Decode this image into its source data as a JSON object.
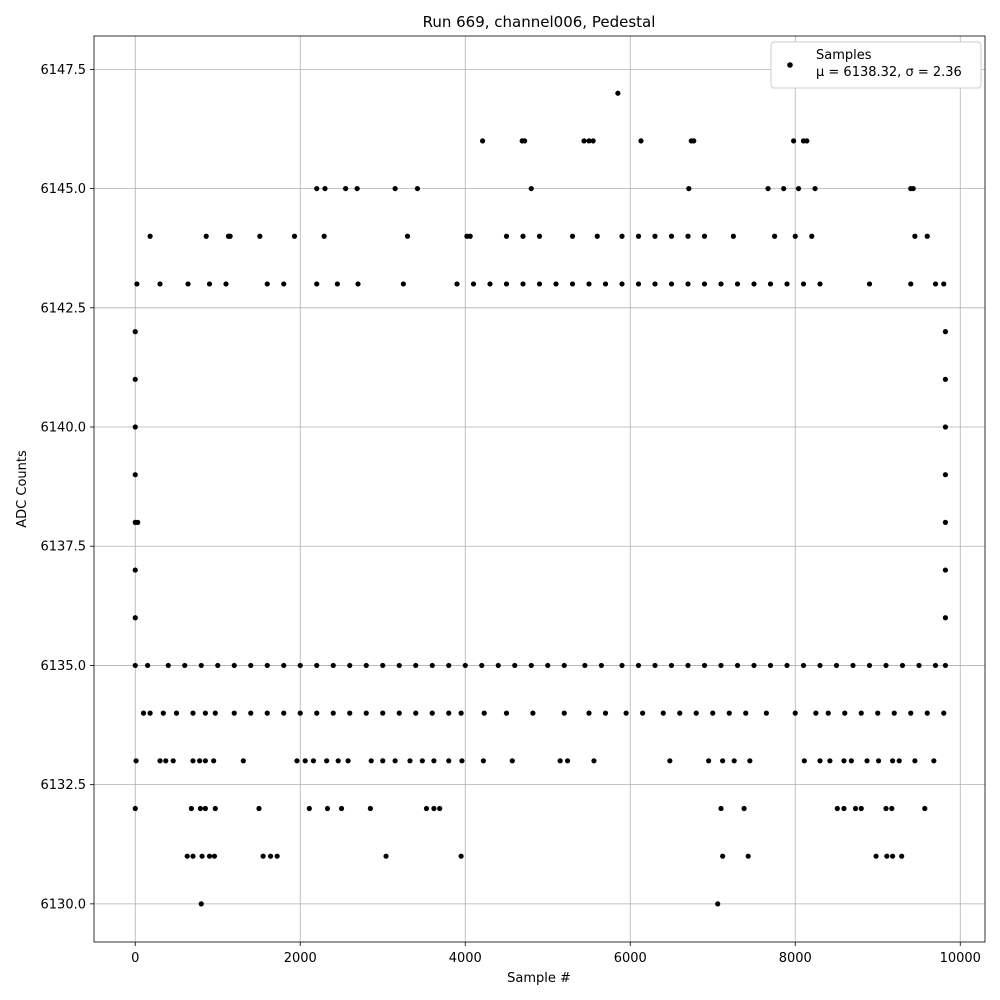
{
  "chart_data": {
    "type": "scatter",
    "title": "Run 669, channel006, Pedestal",
    "xlabel": "Sample #",
    "ylabel": "ADC Counts",
    "xlim": [
      -500,
      10300
    ],
    "ylim": [
      6129.2,
      6148.2
    ],
    "xticks": [
      0,
      2000,
      4000,
      6000,
      8000,
      10000
    ],
    "xtick_labels": [
      "0",
      "2000",
      "4000",
      "6000",
      "8000",
      "10000"
    ],
    "yticks": [
      6130.0,
      6132.5,
      6135.0,
      6137.5,
      6140.0,
      6142.5,
      6145.0,
      6147.5
    ],
    "ytick_labels": [
      "6130.0",
      "6132.5",
      "6135.0",
      "6137.5",
      "6140.0",
      "6142.5",
      "6145.0",
      "6147.5"
    ],
    "grid": true,
    "legend": {
      "position": "top-right",
      "label": "Samples",
      "stats_text": "μ = 6138.32, σ = 2.36"
    },
    "color": "#000000",
    "series": [
      {
        "name": "Samples",
        "points": [
          [
            0,
            6132
          ],
          [
            10,
            6133
          ],
          [
            20,
            6143
          ],
          [
            30,
            6138
          ],
          [
            180,
            6144
          ],
          [
            640,
            6143
          ],
          [
            860,
            6144
          ],
          [
            1130,
            6144
          ],
          [
            1150,
            6144
          ],
          [
            1510,
            6144
          ],
          [
            1930,
            6144
          ],
          [
            2200,
            6145
          ],
          [
            2290,
            6144
          ],
          [
            2300,
            6145
          ],
          [
            2550,
            6145
          ],
          [
            2690,
            6145
          ],
          [
            3150,
            6145
          ],
          [
            3300,
            6144
          ],
          [
            3420,
            6145
          ],
          [
            4020,
            6144
          ],
          [
            4060,
            6144
          ],
          [
            4210,
            6146
          ],
          [
            4690,
            6146
          ],
          [
            4720,
            6146
          ],
          [
            4800,
            6145
          ],
          [
            5440,
            6146
          ],
          [
            5500,
            6146
          ],
          [
            5550,
            6146
          ],
          [
            5850,
            6147
          ],
          [
            6130,
            6146
          ],
          [
            6710,
            6145
          ],
          [
            6740,
            6146
          ],
          [
            6770,
            6146
          ],
          [
            7670,
            6145
          ],
          [
            7860,
            6145
          ],
          [
            7980,
            6146
          ],
          [
            8040,
            6145
          ],
          [
            8100,
            6146
          ],
          [
            8140,
            6146
          ],
          [
            8240,
            6145
          ],
          [
            9400,
            6145
          ],
          [
            9430,
            6145
          ],
          [
            630,
            6131
          ],
          [
            700,
            6131
          ],
          [
            810,
            6131
          ],
          [
            900,
            6131
          ],
          [
            960,
            6131
          ],
          [
            1550,
            6131
          ],
          [
            1640,
            6131
          ],
          [
            1720,
            6131
          ],
          [
            3040,
            6131
          ],
          [
            3950,
            6131
          ],
          [
            7120,
            6131
          ],
          [
            7430,
            6131
          ],
          [
            8980,
            6131
          ],
          [
            9110,
            6131
          ],
          [
            9180,
            6131
          ],
          [
            9290,
            6131
          ],
          [
            800,
            6130
          ],
          [
            7060,
            6130
          ],
          [
            680,
            6132
          ],
          [
            790,
            6132
          ],
          [
            850,
            6132
          ],
          [
            970,
            6132
          ],
          [
            1500,
            6132
          ],
          [
            2110,
            6132
          ],
          [
            2330,
            6132
          ],
          [
            2500,
            6132
          ],
          [
            2850,
            6132
          ],
          [
            3530,
            6132
          ],
          [
            3620,
            6132
          ],
          [
            3690,
            6132
          ],
          [
            7100,
            6132
          ],
          [
            7380,
            6132
          ],
          [
            8510,
            6132
          ],
          [
            8590,
            6132
          ],
          [
            8730,
            6132
          ],
          [
            8800,
            6132
          ],
          [
            9100,
            6132
          ],
          [
            9170,
            6132
          ],
          [
            9570,
            6132
          ],
          [
            300,
            6133
          ],
          [
            370,
            6133
          ],
          [
            460,
            6133
          ],
          [
            700,
            6133
          ],
          [
            780,
            6133
          ],
          [
            850,
            6133
          ],
          [
            950,
            6133
          ],
          [
            1310,
            6133
          ],
          [
            1960,
            6133
          ],
          [
            2060,
            6133
          ],
          [
            2160,
            6133
          ],
          [
            2320,
            6133
          ],
          [
            2460,
            6133
          ],
          [
            2580,
            6133
          ],
          [
            2860,
            6133
          ],
          [
            3000,
            6133
          ],
          [
            3150,
            6133
          ],
          [
            3330,
            6133
          ],
          [
            3480,
            6133
          ],
          [
            3620,
            6133
          ],
          [
            3800,
            6133
          ],
          [
            3960,
            6133
          ],
          [
            4220,
            6133
          ],
          [
            4570,
            6133
          ],
          [
            5150,
            6133
          ],
          [
            5240,
            6133
          ],
          [
            5560,
            6133
          ],
          [
            6480,
            6133
          ],
          [
            6950,
            6133
          ],
          [
            7120,
            6133
          ],
          [
            7260,
            6133
          ],
          [
            7450,
            6133
          ],
          [
            8110,
            6133
          ],
          [
            8300,
            6133
          ],
          [
            8420,
            6133
          ],
          [
            8590,
            6133
          ],
          [
            8680,
            6133
          ],
          [
            8870,
            6133
          ],
          [
            9010,
            6133
          ],
          [
            9180,
            6133
          ],
          [
            9260,
            6133
          ],
          [
            9450,
            6133
          ],
          [
            9680,
            6133
          ],
          [
            100,
            6134
          ],
          [
            180,
            6134
          ],
          [
            340,
            6134
          ],
          [
            500,
            6134
          ],
          [
            700,
            6134
          ],
          [
            850,
            6134
          ],
          [
            970,
            6134
          ],
          [
            1200,
            6134
          ],
          [
            1400,
            6134
          ],
          [
            1600,
            6134
          ],
          [
            1800,
            6134
          ],
          [
            2000,
            6134
          ],
          [
            2200,
            6134
          ],
          [
            2400,
            6134
          ],
          [
            2600,
            6134
          ],
          [
            2800,
            6134
          ],
          [
            3000,
            6134
          ],
          [
            3200,
            6134
          ],
          [
            3400,
            6134
          ],
          [
            3600,
            6134
          ],
          [
            3800,
            6134
          ],
          [
            3950,
            6134
          ],
          [
            4230,
            6134
          ],
          [
            4500,
            6134
          ],
          [
            4820,
            6134
          ],
          [
            5200,
            6134
          ],
          [
            5500,
            6134
          ],
          [
            5700,
            6134
          ],
          [
            5950,
            6134
          ],
          [
            6150,
            6134
          ],
          [
            6400,
            6134
          ],
          [
            6600,
            6134
          ],
          [
            6800,
            6134
          ],
          [
            7000,
            6134
          ],
          [
            7200,
            6134
          ],
          [
            7400,
            6134
          ],
          [
            7650,
            6134
          ],
          [
            8000,
            6134
          ],
          [
            8250,
            6134
          ],
          [
            8400,
            6134
          ],
          [
            8600,
            6134
          ],
          [
            8800,
            6134
          ],
          [
            9000,
            6134
          ],
          [
            9200,
            6134
          ],
          [
            9400,
            6134
          ],
          [
            9600,
            6134
          ],
          [
            9800,
            6134
          ],
          [
            0,
            6135
          ],
          [
            150,
            6135
          ],
          [
            400,
            6135
          ],
          [
            600,
            6135
          ],
          [
            800,
            6135
          ],
          [
            1000,
            6135
          ],
          [
            1200,
            6135
          ],
          [
            1400,
            6135
          ],
          [
            1600,
            6135
          ],
          [
            1800,
            6135
          ],
          [
            2000,
            6135
          ],
          [
            2200,
            6135
          ],
          [
            2400,
            6135
          ],
          [
            2600,
            6135
          ],
          [
            2800,
            6135
          ],
          [
            3000,
            6135
          ],
          [
            3200,
            6135
          ],
          [
            3400,
            6135
          ],
          [
            3600,
            6135
          ],
          [
            3800,
            6135
          ],
          [
            4000,
            6135
          ],
          [
            4200,
            6135
          ],
          [
            4400,
            6135
          ],
          [
            4600,
            6135
          ],
          [
            4800,
            6135
          ],
          [
            5000,
            6135
          ],
          [
            5200,
            6135
          ],
          [
            5450,
            6135
          ],
          [
            5650,
            6135
          ],
          [
            5900,
            6135
          ],
          [
            6100,
            6135
          ],
          [
            6300,
            6135
          ],
          [
            6500,
            6135
          ],
          [
            6700,
            6135
          ],
          [
            6900,
            6135
          ],
          [
            7100,
            6135
          ],
          [
            7300,
            6135
          ],
          [
            7500,
            6135
          ],
          [
            7700,
            6135
          ],
          [
            7900,
            6135
          ],
          [
            8100,
            6135
          ],
          [
            8300,
            6135
          ],
          [
            8500,
            6135
          ],
          [
            8700,
            6135
          ],
          [
            8900,
            6135
          ],
          [
            9100,
            6135
          ],
          [
            9300,
            6135
          ],
          [
            9500,
            6135
          ],
          [
            9700,
            6135
          ],
          [
            9820,
            6135
          ],
          [
            0,
            6136
          ],
          [
            9820,
            6136
          ],
          [
            0,
            6137
          ],
          [
            9820,
            6137
          ],
          [
            0,
            6138
          ],
          [
            9820,
            6138
          ],
          [
            0,
            6139
          ],
          [
            9820,
            6139
          ],
          [
            0,
            6140
          ],
          [
            9820,
            6140
          ],
          [
            0,
            6141
          ],
          [
            9820,
            6141
          ],
          [
            0,
            6142
          ],
          [
            9820,
            6142
          ],
          [
            300,
            6143
          ],
          [
            900,
            6143
          ],
          [
            1100,
            6143
          ],
          [
            1600,
            6143
          ],
          [
            1800,
            6143
          ],
          [
            2200,
            6143
          ],
          [
            2450,
            6143
          ],
          [
            2700,
            6143
          ],
          [
            3250,
            6143
          ],
          [
            3900,
            6143
          ],
          [
            4100,
            6143
          ],
          [
            4300,
            6143
          ],
          [
            4500,
            6143
          ],
          [
            4700,
            6143
          ],
          [
            4900,
            6143
          ],
          [
            5100,
            6143
          ],
          [
            5300,
            6143
          ],
          [
            5500,
            6143
          ],
          [
            5700,
            6143
          ],
          [
            5900,
            6143
          ],
          [
            6100,
            6143
          ],
          [
            6300,
            6143
          ],
          [
            6500,
            6143
          ],
          [
            6700,
            6143
          ],
          [
            6900,
            6143
          ],
          [
            7100,
            6143
          ],
          [
            7300,
            6143
          ],
          [
            7500,
            6143
          ],
          [
            7700,
            6143
          ],
          [
            7900,
            6143
          ],
          [
            8100,
            6143
          ],
          [
            8300,
            6143
          ],
          [
            8900,
            6143
          ],
          [
            9400,
            6143
          ],
          [
            9700,
            6143
          ],
          [
            9800,
            6143
          ],
          [
            4500,
            6144
          ],
          [
            4700,
            6144
          ],
          [
            4900,
            6144
          ],
          [
            5300,
            6144
          ],
          [
            5600,
            6144
          ],
          [
            5900,
            6144
          ],
          [
            6100,
            6144
          ],
          [
            6300,
            6144
          ],
          [
            6500,
            6144
          ],
          [
            6700,
            6144
          ],
          [
            6900,
            6144
          ],
          [
            7250,
            6144
          ],
          [
            7750,
            6144
          ],
          [
            8000,
            6144
          ],
          [
            8200,
            6144
          ],
          [
            9450,
            6144
          ],
          [
            9600,
            6144
          ]
        ]
      }
    ]
  }
}
